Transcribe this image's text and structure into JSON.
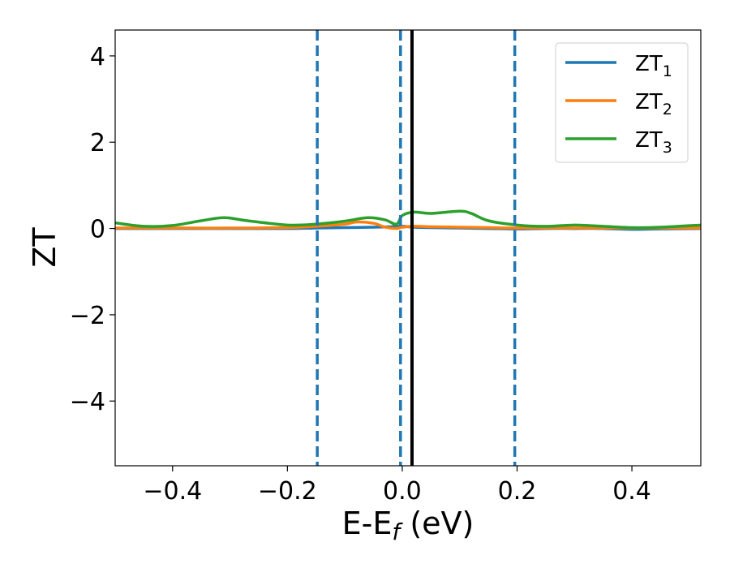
{
  "chart_data": {
    "type": "line",
    "xlabel": "E-E_f (eV)",
    "ylabel": "ZT",
    "xlim": [
      -0.5,
      0.52
    ],
    "ylim": [
      -5.5,
      4.6
    ],
    "xticks": [
      -0.4,
      -0.2,
      0.0,
      0.2,
      0.4
    ],
    "xtick_labels": [
      "−0.4",
      "−0.2",
      "0.0",
      "0.2",
      "0.4"
    ],
    "yticks": [
      -4,
      -2,
      0,
      2,
      4
    ],
    "ytick_labels": [
      "−4",
      "−2",
      "0",
      "2",
      "4"
    ],
    "grid": false,
    "legend_position": "top-right",
    "series": [
      {
        "name": "ZT1",
        "name_base": "ZT",
        "name_sub": "1",
        "color": "#1f77b4",
        "x": [
          -0.5,
          -0.4,
          -0.3,
          -0.2,
          -0.15,
          -0.1,
          -0.05,
          -0.02,
          0.0,
          0.02,
          0.05,
          0.1,
          0.15,
          0.2,
          0.25,
          0.3,
          0.35,
          0.4,
          0.45,
          0.52
        ],
        "y": [
          0.0,
          0.0,
          0.0,
          0.0,
          0.01,
          0.02,
          0.03,
          0.04,
          0.05,
          0.03,
          0.02,
          0.01,
          0.0,
          -0.01,
          0.0,
          0.0,
          0.0,
          -0.02,
          -0.01,
          0.0
        ]
      },
      {
        "name": "ZT2",
        "name_base": "ZT",
        "name_sub": "2",
        "color": "#ff7f0e",
        "x": [
          -0.5,
          -0.4,
          -0.3,
          -0.2,
          -0.15,
          -0.1,
          -0.08,
          -0.05,
          -0.03,
          -0.01,
          0.0,
          0.02,
          0.05,
          0.1,
          0.15,
          0.2,
          0.3,
          0.4,
          0.52
        ],
        "y": [
          0.01,
          0.01,
          0.01,
          0.02,
          0.05,
          0.1,
          0.15,
          0.12,
          0.03,
          0.0,
          0.03,
          0.05,
          0.04,
          0.03,
          0.02,
          0.01,
          0.01,
          0.01,
          0.01
        ]
      },
      {
        "name": "ZT3",
        "name_base": "ZT",
        "name_sub": "3",
        "color": "#2ca02c",
        "x": [
          -0.5,
          -0.45,
          -0.4,
          -0.35,
          -0.31,
          -0.27,
          -0.2,
          -0.15,
          -0.1,
          -0.06,
          -0.03,
          -0.01,
          0.0,
          0.02,
          0.05,
          0.1,
          0.12,
          0.15,
          0.2,
          0.25,
          0.3,
          0.35,
          0.4,
          0.45,
          0.52
        ],
        "y": [
          0.13,
          0.05,
          0.07,
          0.18,
          0.25,
          0.18,
          0.08,
          0.1,
          0.17,
          0.25,
          0.2,
          0.1,
          0.3,
          0.38,
          0.35,
          0.4,
          0.35,
          0.18,
          0.08,
          0.05,
          0.08,
          0.05,
          0.02,
          0.03,
          0.08
        ]
      }
    ],
    "vertical_lines": [
      {
        "x": -0.148,
        "style": "dashed",
        "color": "#1f77b4"
      },
      {
        "x": -0.003,
        "style": "dashed",
        "color": "#1f77b4"
      },
      {
        "x": 0.017,
        "style": "solid",
        "color": "#000000"
      },
      {
        "x": 0.196,
        "style": "dashed",
        "color": "#1f77b4"
      }
    ]
  }
}
